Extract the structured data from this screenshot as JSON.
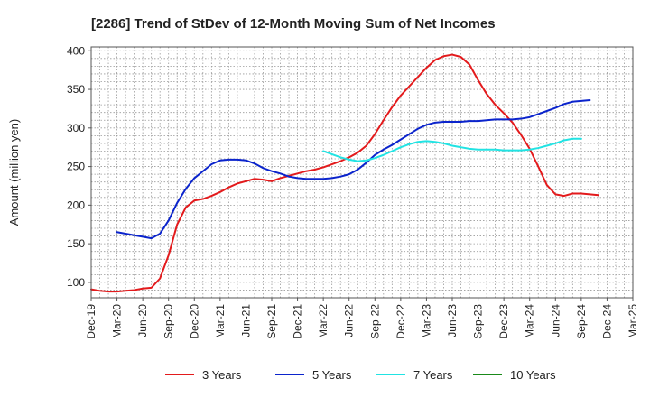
{
  "chart_data": {
    "type": "line",
    "title": "[2286]  Trend of StDev of 12-Month Moving Sum of Net Incomes",
    "xlabel": "",
    "ylabel": "Amount (million yen)",
    "ylim": [
      80,
      405
    ],
    "y_ticks": [
      100,
      150,
      200,
      250,
      300,
      350,
      400
    ],
    "x_tick_labels": [
      "Dec-19",
      "Mar-20",
      "Jun-20",
      "Sep-20",
      "Dec-20",
      "Mar-21",
      "Jun-21",
      "Sep-21",
      "Dec-21",
      "Mar-22",
      "Jun-22",
      "Sep-22",
      "Dec-22",
      "Mar-23",
      "Jun-23",
      "Sep-23",
      "Dec-23",
      "Mar-24",
      "Jun-24",
      "Sep-24",
      "Dec-24",
      "Mar-25"
    ],
    "x_start": "Dec-19",
    "x_end": "Mar-25",
    "grid": true,
    "legend_position": "bottom",
    "series": [
      {
        "name": "3 Years",
        "color": "#e31a1c",
        "start": "Dec-19",
        "values": [
          91,
          89,
          88,
          88,
          89,
          90,
          92,
          93,
          105,
          135,
          175,
          197,
          206,
          208,
          212,
          217,
          223,
          228,
          231,
          234,
          233,
          231,
          235,
          238,
          241,
          244,
          246,
          249,
          253,
          257,
          262,
          268,
          277,
          292,
          310,
          327,
          342,
          354,
          366,
          378,
          388,
          393,
          395,
          392,
          382,
          362,
          344,
          330,
          319,
          307,
          291,
          273,
          250,
          226,
          214,
          212,
          215,
          215,
          214,
          213
        ]
      },
      {
        "name": "5 Years",
        "color": "#0b24cc",
        "start": "Mar-20",
        "values": [
          165,
          163,
          161,
          159,
          157,
          163,
          180,
          203,
          221,
          235,
          244,
          253,
          258,
          259,
          259,
          258,
          254,
          248,
          244,
          241,
          237,
          235,
          234,
          234,
          234,
          235,
          237,
          240,
          246,
          255,
          265,
          272,
          278,
          285,
          292,
          299,
          304,
          307,
          308,
          308,
          308,
          309,
          309,
          310,
          311,
          311,
          311,
          312,
          314,
          318,
          322,
          326,
          331,
          334,
          335,
          336
        ]
      },
      {
        "name": "7 Years",
        "color": "#21e3e3",
        "start": "Mar-22",
        "values": [
          270,
          266,
          262,
          259,
          257,
          258,
          261,
          265,
          270,
          275,
          279,
          282,
          283,
          282,
          280,
          277,
          275,
          273,
          272,
          272,
          272,
          271,
          271,
          271,
          272,
          274,
          277,
          280,
          284,
          286,
          286
        ]
      },
      {
        "name": "10 Years",
        "color": "#1a8a1a",
        "start": "Mar-22",
        "values": []
      }
    ]
  }
}
